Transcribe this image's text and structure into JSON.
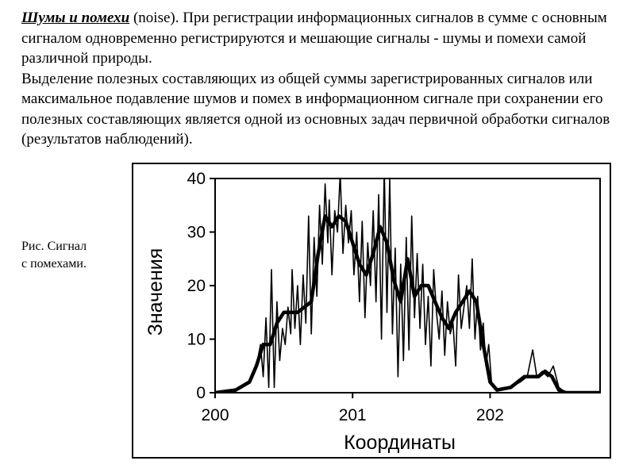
{
  "text": {
    "term": "Шумы и помехи",
    "term_suffix": " (noise). При регистрации информационных сигналов в сумме с основным сигналом одновременно регистрируются и мешающие сигналы - шумы и помехи самой различной природы.",
    "paragraph2": "Выделение полезных составляющих из общей суммы зарегистрированных сигналов или максимальное подавление шумов и помех в информационном сигнале при сохранении его полезных составляющих является одной из основных задач первичной обработки сигналов (результатов наблюдений).",
    "caption_line1": "Рис. Сигнал",
    "caption_line2": "с помехами."
  },
  "chart_data": {
    "type": "line",
    "title": "",
    "xlabel": "Координаты",
    "ylabel": "Значения",
    "xlim": [
      200,
      202.8
    ],
    "ylim": [
      0,
      40
    ],
    "x_ticks": [
      "200",
      "201",
      "202"
    ],
    "y_ticks": [
      "0",
      "10",
      "20",
      "30",
      "40"
    ],
    "grid": false,
    "legend": "none",
    "series": [
      {
        "style": "thin-noisy",
        "points": [
          [
            200.0,
            0
          ],
          [
            200.15,
            0.5
          ],
          [
            200.25,
            2
          ],
          [
            200.3,
            5
          ],
          [
            200.33,
            9
          ],
          [
            200.35,
            3
          ],
          [
            200.37,
            14
          ],
          [
            200.39,
            1
          ],
          [
            200.41,
            23
          ],
          [
            200.43,
            1
          ],
          [
            200.45,
            17
          ],
          [
            200.47,
            6
          ],
          [
            200.49,
            12
          ],
          [
            200.51,
            9
          ],
          [
            200.53,
            16
          ],
          [
            200.55,
            11
          ],
          [
            200.56,
            23
          ],
          [
            200.58,
            12
          ],
          [
            200.6,
            20
          ],
          [
            200.62,
            9
          ],
          [
            200.64,
            22
          ],
          [
            200.66,
            13
          ],
          [
            200.68,
            33
          ],
          [
            200.7,
            11
          ],
          [
            200.72,
            29
          ],
          [
            200.74,
            18
          ],
          [
            200.76,
            35
          ],
          [
            200.78,
            24
          ],
          [
            200.8,
            39
          ],
          [
            200.82,
            28
          ],
          [
            200.83,
            36
          ],
          [
            200.85,
            22
          ],
          [
            200.87,
            34
          ],
          [
            200.89,
            30
          ],
          [
            200.91,
            41
          ],
          [
            200.93,
            26
          ],
          [
            200.95,
            35
          ],
          [
            200.97,
            28
          ],
          [
            200.99,
            34
          ],
          [
            201.01,
            22
          ],
          [
            201.03,
            30
          ],
          [
            201.05,
            17
          ],
          [
            201.07,
            32
          ],
          [
            201.09,
            14
          ],
          [
            201.11,
            28
          ],
          [
            201.13,
            20
          ],
          [
            201.15,
            34
          ],
          [
            201.17,
            17
          ],
          [
            201.19,
            37
          ],
          [
            201.21,
            10
          ],
          [
            201.23,
            42
          ],
          [
            201.25,
            15
          ],
          [
            201.27,
            40
          ],
          [
            201.29,
            11
          ],
          [
            201.31,
            27
          ],
          [
            201.33,
            3
          ],
          [
            201.35,
            24
          ],
          [
            201.37,
            6
          ],
          [
            201.39,
            29
          ],
          [
            201.41,
            8
          ],
          [
            201.43,
            33
          ],
          [
            201.45,
            14
          ],
          [
            201.47,
            26
          ],
          [
            201.49,
            12
          ],
          [
            201.51,
            24
          ],
          [
            201.53,
            9
          ],
          [
            201.55,
            18
          ],
          [
            201.57,
            5
          ],
          [
            201.59,
            23
          ],
          [
            201.61,
            15
          ],
          [
            201.63,
            10
          ],
          [
            201.65,
            19
          ],
          [
            201.67,
            7
          ],
          [
            201.69,
            17
          ],
          [
            201.71,
            11
          ],
          [
            201.73,
            13
          ],
          [
            201.75,
            5
          ],
          [
            201.77,
            22
          ],
          [
            201.79,
            12
          ],
          [
            201.81,
            16
          ],
          [
            201.83,
            20
          ],
          [
            201.85,
            12
          ],
          [
            201.87,
            25
          ],
          [
            201.89,
            10
          ],
          [
            201.91,
            18
          ],
          [
            201.93,
            8
          ],
          [
            201.95,
            13
          ],
          [
            201.97,
            5
          ],
          [
            201.99,
            9
          ],
          [
            202.01,
            2
          ],
          [
            202.03,
            1
          ],
          [
            202.08,
            0.5
          ],
          [
            202.15,
            1
          ],
          [
            202.22,
            2
          ],
          [
            202.27,
            3
          ],
          [
            202.31,
            8
          ],
          [
            202.34,
            3
          ],
          [
            202.38,
            4
          ],
          [
            202.42,
            3
          ],
          [
            202.46,
            5
          ],
          [
            202.5,
            1
          ],
          [
            202.55,
            0
          ],
          [
            202.8,
            0
          ]
        ]
      },
      {
        "style": "thick-smoothed",
        "points": [
          [
            200.0,
            0
          ],
          [
            200.15,
            0.5
          ],
          [
            200.25,
            2
          ],
          [
            200.3,
            5
          ],
          [
            200.35,
            9
          ],
          [
            200.4,
            9
          ],
          [
            200.45,
            13
          ],
          [
            200.5,
            15
          ],
          [
            200.55,
            15
          ],
          [
            200.6,
            15
          ],
          [
            200.65,
            16
          ],
          [
            200.7,
            17
          ],
          [
            200.75,
            26
          ],
          [
            200.8,
            33
          ],
          [
            200.85,
            31
          ],
          [
            200.9,
            33
          ],
          [
            200.95,
            32
          ],
          [
            201.0,
            28
          ],
          [
            201.05,
            24
          ],
          [
            201.1,
            22
          ],
          [
            201.15,
            26
          ],
          [
            201.2,
            31
          ],
          [
            201.25,
            28
          ],
          [
            201.3,
            21
          ],
          [
            201.35,
            17
          ],
          [
            201.4,
            25
          ],
          [
            201.45,
            18
          ],
          [
            201.5,
            20
          ],
          [
            201.55,
            20
          ],
          [
            201.6,
            17
          ],
          [
            201.65,
            14
          ],
          [
            201.7,
            12
          ],
          [
            201.75,
            15
          ],
          [
            201.8,
            17
          ],
          [
            201.85,
            19
          ],
          [
            201.9,
            17
          ],
          [
            201.95,
            9
          ],
          [
            202.0,
            2
          ],
          [
            202.05,
            0.5
          ],
          [
            202.15,
            1
          ],
          [
            202.2,
            2
          ],
          [
            202.25,
            3
          ],
          [
            202.3,
            3
          ],
          [
            202.35,
            3
          ],
          [
            202.4,
            4
          ],
          [
            202.45,
            3
          ],
          [
            202.5,
            0.5
          ],
          [
            202.55,
            0
          ],
          [
            202.8,
            0
          ]
        ]
      }
    ]
  }
}
